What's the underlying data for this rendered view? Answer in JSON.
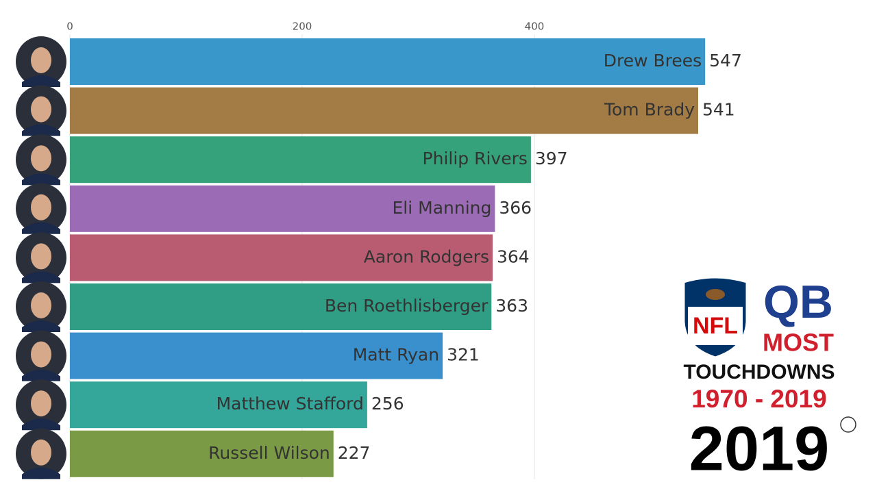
{
  "chart_data": {
    "type": "bar",
    "orientation": "horizontal",
    "categories": [
      "Drew Brees",
      "Tom Brady",
      "Philip Rivers",
      "Eli Manning",
      "Aaron Rodgers",
      "Ben Roethlisberger",
      "Matt Ryan",
      "Matthew Stafford",
      "Russell Wilson"
    ],
    "values": [
      547,
      541,
      397,
      366,
      364,
      363,
      321,
      256,
      227
    ],
    "colors": [
      "#3a97c9",
      "#a27b45",
      "#35a27c",
      "#9b6bb6",
      "#b95c72",
      "#2f9e85",
      "#3a8fcd",
      "#35a69a",
      "#7a9a45"
    ],
    "xlim": [
      0,
      600
    ],
    "xticks": [
      0,
      200,
      400
    ],
    "grid": true,
    "logo_text": "NFL",
    "title_lines": [
      "QB",
      "MOST",
      "TOUCHDOWNS"
    ],
    "period": "1970 - 2019",
    "year": "2019"
  }
}
